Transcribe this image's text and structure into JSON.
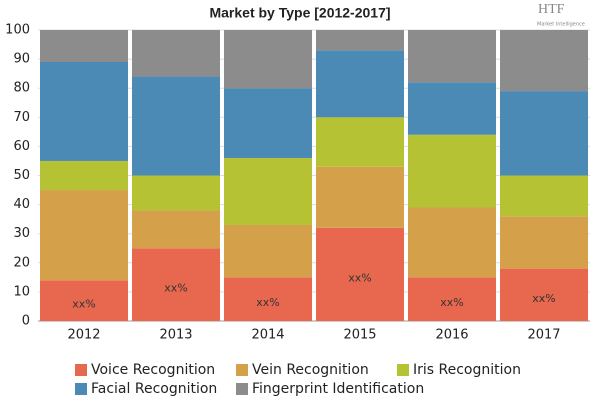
{
  "chart_data": {
    "type": "stacked_bar",
    "title": "Market by Type [2012-2017]",
    "logo": {
      "mark": "HTF",
      "text": "Market Intelligence"
    },
    "categories": [
      "2012",
      "2013",
      "2014",
      "2015",
      "2016",
      "2017"
    ],
    "series": [
      {
        "name": "Voice Recognition",
        "color": "#e8684f",
        "values": [
          14,
          25,
          15,
          32,
          15,
          18
        ],
        "value_labels": [
          "xx%",
          "xx%",
          "xx%",
          "xx%",
          "xx%",
          "xx%"
        ]
      },
      {
        "name": "Vein Recognition",
        "color": "#d4a04a",
        "values": [
          31,
          13,
          18,
          21,
          24,
          18
        ]
      },
      {
        "name": "Iris Recognition",
        "color": "#b5c234",
        "values": [
          10,
          12,
          23,
          17,
          25,
          14
        ]
      },
      {
        "name": "Facial Recognition",
        "color": "#4a8ab5",
        "values": [
          34,
          34,
          24,
          23,
          18,
          29
        ]
      },
      {
        "name": "Fingerprint Identification",
        "color": "#8c8c8c",
        "values": [
          11,
          16,
          20,
          7,
          18,
          21
        ]
      }
    ],
    "ylim": [
      0,
      100
    ],
    "yticks": [
      0,
      10,
      20,
      30,
      40,
      50,
      60,
      70,
      80,
      90,
      100
    ],
    "grid": true
  }
}
